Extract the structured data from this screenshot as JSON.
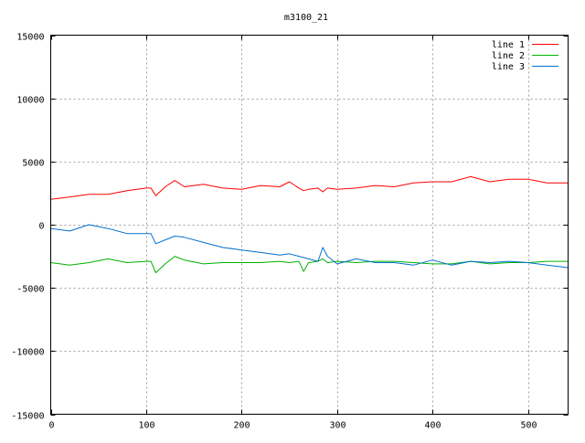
{
  "chart_data": {
    "type": "line",
    "title": "m3100_21",
    "xlabel": "",
    "ylabel": "",
    "xlim": [
      0,
      542
    ],
    "ylim": [
      -15000,
      15000
    ],
    "xticks": [
      0,
      100,
      200,
      300,
      400,
      500
    ],
    "yticks": [
      -15000,
      -10000,
      -5000,
      0,
      5000,
      10000,
      15000
    ],
    "grid": true,
    "legend_position": "top-right",
    "x": [
      0,
      20,
      40,
      60,
      80,
      100,
      105,
      110,
      120,
      130,
      140,
      160,
      180,
      200,
      220,
      240,
      250,
      260,
      265,
      270,
      280,
      285,
      290,
      300,
      320,
      340,
      360,
      380,
      400,
      420,
      440,
      460,
      480,
      500,
      520,
      542
    ],
    "series": [
      {
        "name": "line 1",
        "color": "#ff0000",
        "values": [
          2000,
          2200,
          2400,
          2400,
          2700,
          2900,
          2900,
          2300,
          3000,
          3500,
          3000,
          3200,
          2900,
          2800,
          3100,
          3000,
          3400,
          2900,
          2700,
          2800,
          2900,
          2600,
          2900,
          2800,
          2900,
          3100,
          3000,
          3300,
          3400,
          3400,
          3800,
          3400,
          3600,
          3600,
          3300,
          3300
        ]
      },
      {
        "name": "line 2",
        "color": "#00b000",
        "values": [
          -3000,
          -3200,
          -3000,
          -2700,
          -3000,
          -2900,
          -2900,
          -3800,
          -3100,
          -2500,
          -2800,
          -3100,
          -3000,
          -3000,
          -3000,
          -2900,
          -3000,
          -2900,
          -3700,
          -3000,
          -2900,
          -2700,
          -3000,
          -2900,
          -3000,
          -2900,
          -2900,
          -3000,
          -3100,
          -3100,
          -2900,
          -3100,
          -3000,
          -3000,
          -2900,
          -2900
        ]
      },
      {
        "name": "line 3",
        "color": "#0070d0",
        "values": [
          -300,
          -500,
          0,
          -300,
          -700,
          -700,
          -700,
          -1500,
          -1200,
          -900,
          -1000,
          -1400,
          -1800,
          -2000,
          -2200,
          -2400,
          -2300,
          -2500,
          -2600,
          -2700,
          -2900,
          -1800,
          -2500,
          -3100,
          -2700,
          -3000,
          -3000,
          -3200,
          -2800,
          -3200,
          -2900,
          -3000,
          -2900,
          -3000,
          -3200,
          -3400
        ]
      }
    ]
  }
}
